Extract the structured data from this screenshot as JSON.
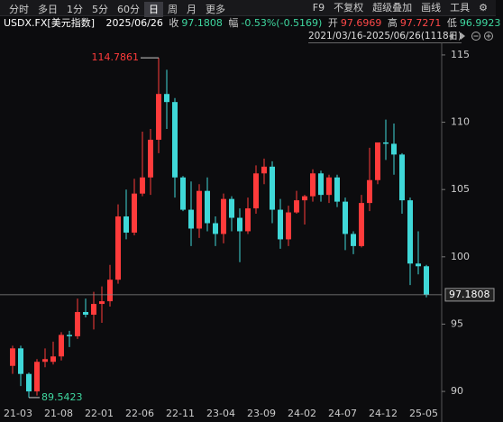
{
  "toolbar": {
    "periods": [
      "分时",
      "多日",
      "1分",
      "5分",
      "60分",
      "日",
      "周",
      "月",
      "更多"
    ],
    "selected": "日",
    "tools": [
      "F9",
      "不复权",
      "超级叠加",
      "画线",
      "工具"
    ]
  },
  "quote": {
    "symbol": "USDX.FX[美元指数]",
    "date": "2025/06/26",
    "close_label": "收",
    "close": "97.1808",
    "change_label": "幅",
    "change": "-0.53%(-0.5169)",
    "open_label": "开",
    "open": "97.6969",
    "high_label": "高",
    "high": "97.7271",
    "low_label": "低",
    "low": "96.9923"
  },
  "range": "2021/03/16-2025/06/26(1118日)",
  "chart_data": {
    "type": "candlestick",
    "up_color": "#ff3b3b",
    "down_color": "#3fd8d8",
    "categories": [
      "21-03",
      null,
      null,
      null,
      null,
      "21-08",
      null,
      null,
      null,
      null,
      "22-01",
      null,
      null,
      null,
      null,
      "22-06",
      null,
      null,
      null,
      null,
      "22-11",
      null,
      null,
      null,
      null,
      "23-04",
      null,
      null,
      null,
      null,
      "23-09",
      null,
      null,
      null,
      null,
      "24-02",
      null,
      null,
      null,
      null,
      "24-07",
      null,
      null,
      null,
      null,
      "24-12",
      null,
      null,
      null,
      null,
      "25-05",
      null
    ],
    "open": [
      91.9,
      93.2,
      91.3,
      90.0,
      92.2,
      92.2,
      92.6,
      94.2,
      94.1,
      95.9,
      95.7,
      96.5,
      96.7,
      98.3,
      103.0,
      101.8,
      104.7,
      105.9,
      108.7,
      112.1,
      111.5,
      105.9,
      103.5,
      102.1,
      104.9,
      102.5,
      101.7,
      104.3,
      102.9,
      101.9,
      103.6,
      106.2,
      106.7,
      103.5,
      101.3,
      103.3,
      104.2,
      104.5,
      106.2,
      104.6,
      105.9,
      104.1,
      101.7,
      100.8,
      104.0,
      105.7,
      108.5,
      108.4,
      107.6,
      104.2,
      99.5,
      99.3
    ],
    "high": [
      93.4,
      93.4,
      91.4,
      92.4,
      93.2,
      93.7,
      94.4,
      94.5,
      96.9,
      96.9,
      97.4,
      97.8,
      99.4,
      103.9,
      105.0,
      105.8,
      109.3,
      109.5,
      114.7861,
      113.9,
      111.8,
      106.0,
      105.6,
      105.4,
      105.9,
      103.0,
      104.7,
      104.5,
      103.6,
      104.4,
      106.8,
      107.3,
      107.1,
      104.3,
      103.8,
      104.9,
      104.6,
      106.5,
      106.4,
      106.1,
      106.1,
      104.4,
      101.9,
      104.6,
      108.1,
      108.5,
      110.2,
      109.9,
      107.7,
      104.4,
      101.9,
      99.4
    ],
    "low": [
      91.3,
      90.4,
      89.5423,
      89.7,
      91.8,
      92.0,
      92.3,
      93.3,
      93.9,
      95.5,
      94.6,
      95.1,
      96.3,
      98.0,
      101.3,
      101.6,
      104.5,
      104.6,
      107.7,
      109.5,
      104.4,
      103.4,
      100.8,
      101.4,
      101.9,
      100.8,
      101.0,
      101.9,
      99.6,
      101.7,
      103.2,
      105.4,
      102.5,
      100.6,
      100.8,
      103.2,
      102.4,
      104.1,
      104.1,
      104.0,
      103.7,
      100.5,
      100.2,
      100.7,
      103.4,
      105.4,
      107.2,
      106.1,
      103.2,
      97.9,
      98.7,
      96.9923
    ],
    "close": [
      93.2,
      91.3,
      90.0,
      92.2,
      92.4,
      92.6,
      94.2,
      94.1,
      95.9,
      95.7,
      96.5,
      96.7,
      98.3,
      103.0,
      101.8,
      104.7,
      105.9,
      108.7,
      112.1,
      111.5,
      105.9,
      103.5,
      102.1,
      104.9,
      102.5,
      101.7,
      104.3,
      102.9,
      101.9,
      103.6,
      106.2,
      106.7,
      103.5,
      101.3,
      103.3,
      104.2,
      104.5,
      106.2,
      104.6,
      105.9,
      104.1,
      101.7,
      100.8,
      104.0,
      105.7,
      108.5,
      108.4,
      107.6,
      104.2,
      99.5,
      99.3,
      97.1808
    ],
    "ylim": [
      88.8,
      116
    ],
    "yticks": [
      90,
      95,
      100,
      105,
      110,
      115
    ],
    "grid": false
  }
}
